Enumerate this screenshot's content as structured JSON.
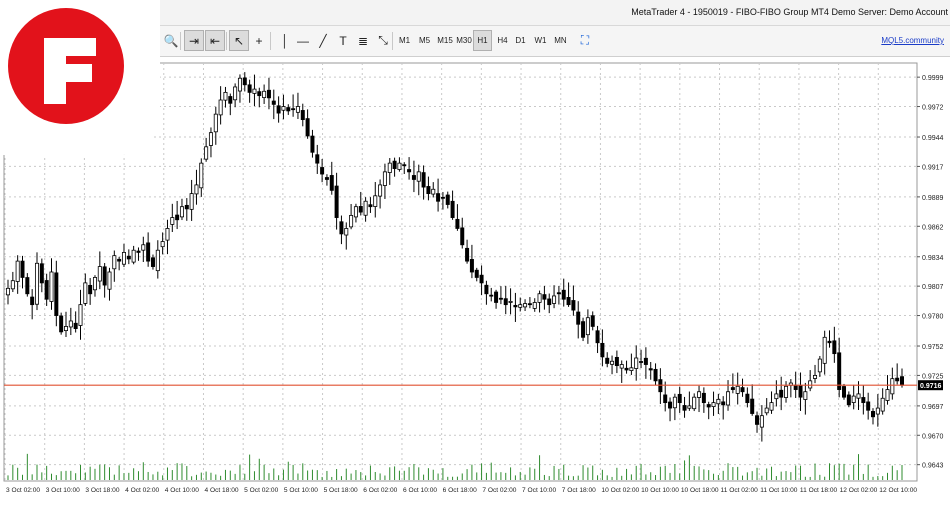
{
  "window": {
    "title": "MetaTrader 4 - 1950019 - FIBO-FIBO Group MT4 Demo Server: Demo Account"
  },
  "toolbar": {
    "tools": [
      {
        "name": "zoom-in-icon",
        "glyph": "🔍"
      },
      {
        "name": "auto-scroll-icon",
        "glyph": "⇥"
      },
      {
        "name": "chart-shift-icon",
        "glyph": "⇤"
      },
      {
        "name": "cursor-icon",
        "glyph": "↖"
      },
      {
        "name": "crosshair-icon",
        "glyph": "+"
      },
      {
        "name": "vertical-line-icon",
        "glyph": "│"
      },
      {
        "name": "horizontal-line-icon",
        "glyph": "—"
      },
      {
        "name": "trendline-icon",
        "glyph": "╱"
      },
      {
        "name": "text-label-icon",
        "glyph": "T"
      },
      {
        "name": "fibonacci-icon",
        "glyph": "≣"
      },
      {
        "name": "arrows-icon",
        "glyph": "⤡"
      }
    ],
    "timeframes": [
      "M1",
      "M5",
      "M15",
      "M30",
      "H1",
      "H4",
      "D1",
      "W1",
      "MN"
    ],
    "selected_timeframe": "H1",
    "fullscreen_icon": "expand-icon",
    "mql5_link": "MQL5.community"
  },
  "chart_data": {
    "type": "candlestick",
    "y_ticks": [
      "0.9999",
      "0.9972",
      "0.9944",
      "0.9917",
      "0.9889",
      "0.9862",
      "0.9834",
      "0.9807",
      "0.9780",
      "0.9752",
      "0.9725",
      "0.9697",
      "0.9670",
      "0.9643"
    ],
    "ylim": [
      0.9628,
      1.0012
    ],
    "current_price": "0.9716",
    "current_price_value": 0.9716,
    "x_labels": [
      "3 Oct 02:00",
      "3 Oct 10:00",
      "3 Oct 18:00",
      "4 Oct 02:00",
      "4 Oct 10:00",
      "4 Oct 18:00",
      "5 Oct 02:00",
      "5 Oct 10:00",
      "5 Oct 18:00",
      "6 Oct 02:00",
      "6 Oct 10:00",
      "6 Oct 18:00",
      "7 Oct 02:00",
      "7 Oct 10:00",
      "7 Oct 18:00",
      "10 Oct 02:00",
      "10 Oct 10:00",
      "10 Oct 18:00",
      "11 Oct 02:00",
      "11 Oct 10:00",
      "11 Oct 18:00",
      "12 Oct 02:00",
      "12 Oct 10:00"
    ],
    "grid": true,
    "colors": {
      "bull": "#ffffff",
      "bear": "#000000",
      "wick": "#000000",
      "grid": "#c9c9c9",
      "volume": "#2e8b2e",
      "price_line": "#e05030",
      "price_label_bg": "#000000"
    },
    "closes": [
      0.9805,
      0.9812,
      0.983,
      0.9815,
      0.98,
      0.979,
      0.9828,
      0.981,
      0.9795,
      0.982,
      0.978,
      0.9765,
      0.977,
      0.9775,
      0.9768,
      0.979,
      0.981,
      0.98,
      0.9815,
      0.9825,
      0.9808,
      0.982,
      0.9835,
      0.983,
      0.9838,
      0.9832,
      0.984,
      0.9838,
      0.9845,
      0.983,
      0.9825,
      0.984,
      0.9848,
      0.986,
      0.987,
      0.9868,
      0.988,
      0.9878,
      0.9892,
      0.99,
      0.992,
      0.9935,
      0.9948,
      0.9965,
      0.9978,
      0.9985,
      0.9975,
      0.999,
      0.9998,
      0.9992,
      0.9985,
      0.9988,
      0.9982,
      0.9986,
      0.998,
      0.9974,
      0.9966,
      0.9972,
      0.9968,
      0.997,
      0.9972,
      0.996,
      0.9945,
      0.993,
      0.992,
      0.991,
      0.9905,
      0.9895,
      0.987,
      0.9855,
      0.986,
      0.9872,
      0.988,
      0.9875,
      0.9885,
      0.988,
      0.989,
      0.99,
      0.9912,
      0.992,
      0.9915,
      0.992,
      0.9918,
      0.9912,
      0.9905,
      0.9912,
      0.9898,
      0.9892,
      0.9896,
      0.9885,
      0.9888,
      0.9882,
      0.987,
      0.986,
      0.9845,
      0.983,
      0.982,
      0.9815,
      0.981,
      0.98,
      0.9798,
      0.9792,
      0.9795,
      0.979,
      0.9793,
      0.9788,
      0.979,
      0.9791,
      0.979,
      0.9792,
      0.98,
      0.9795,
      0.979,
      0.9798,
      0.98,
      0.9795,
      0.979,
      0.9785,
      0.9772,
      0.976,
      0.9778,
      0.977,
      0.9755,
      0.9742,
      0.9736,
      0.9738,
      0.9734,
      0.9735,
      0.973,
      0.9732,
      0.9741,
      0.9737,
      0.9735,
      0.973,
      0.972,
      0.971,
      0.97,
      0.9695,
      0.9705,
      0.97,
      0.9693,
      0.9697,
      0.9705,
      0.971,
      0.97,
      0.9696,
      0.97,
      0.9703,
      0.9698,
      0.971,
      0.9712,
      0.9715,
      0.971,
      0.97,
      0.969,
      0.968,
      0.9688,
      0.9695,
      0.97,
      0.9708,
      0.9705,
      0.9715,
      0.9718,
      0.9712,
      0.9705,
      0.971,
      0.972,
      0.9725,
      0.974,
      0.976,
      0.9755,
      0.9745,
      0.9712,
      0.9705,
      0.9698,
      0.9706,
      0.9708,
      0.97,
      0.9693,
      0.9687,
      0.9695,
      0.9704,
      0.9712,
      0.9722,
      0.972,
      0.9716
    ]
  }
}
